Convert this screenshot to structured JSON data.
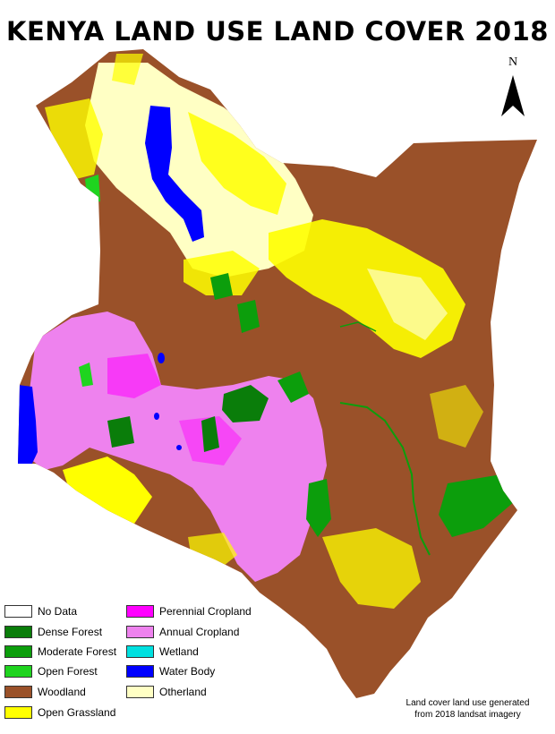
{
  "title": "KENYA LAND USE LAND COVER 2018",
  "north_label": "N",
  "legend": [
    {
      "label": "No Data",
      "color": "#ffffff"
    },
    {
      "label": "Dense Forest",
      "color": "#0a7d0a"
    },
    {
      "label": "Moderate Forest",
      "color": "#0c9e0c"
    },
    {
      "label": "Open Forest",
      "color": "#1fd41f"
    },
    {
      "label": "Woodland",
      "color": "#9a5129"
    },
    {
      "label": "Open Grassland",
      "color": "#ffff00"
    },
    {
      "label": "Perennial Cropland",
      "color": "#ff00ff"
    },
    {
      "label": "Annual Cropland",
      "color": "#ee82ee"
    },
    {
      "label": "Wetland",
      "color": "#00e0e0"
    },
    {
      "label": "Water Body",
      "color": "#0000ff"
    },
    {
      "label": "Otherland",
      "color": "#ffffc4"
    }
  ],
  "note": {
    "line1": "Land cover land use generated",
    "line2": "from 2018 landsat imagery"
  }
}
